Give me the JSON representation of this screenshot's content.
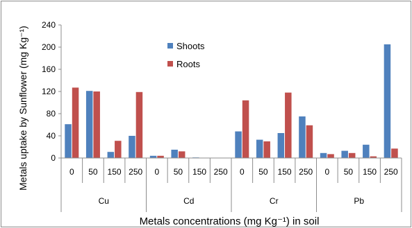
{
  "chart_data": {
    "type": "bar",
    "ylabel": "Metals uptake by Sunflower (mg Kg⁻¹)",
    "xlabel": "Metals concentrations (mg Kg⁻¹) in soil",
    "ylim": [
      0,
      240
    ],
    "yticks": [
      0,
      40,
      80,
      120,
      160,
      200,
      240
    ],
    "grid": false,
    "legend_position": "top-center",
    "groups": [
      {
        "label": "Cu",
        "categories": [
          "0",
          "50",
          "150",
          "250"
        ]
      },
      {
        "label": "Cd",
        "categories": [
          "0",
          "50",
          "150",
          "250"
        ]
      },
      {
        "label": "Cr",
        "categories": [
          "0",
          "50",
          "150",
          "250"
        ]
      },
      {
        "label": "Pb",
        "categories": [
          "0",
          "50",
          "150",
          "250"
        ]
      }
    ],
    "series": [
      {
        "name": "Shoots",
        "color": "#4f81bd",
        "values": [
          61,
          121,
          11,
          40,
          4,
          15,
          1,
          0,
          48,
          33,
          45,
          75,
          9,
          13,
          24,
          205
        ]
      },
      {
        "name": "Roots",
        "color": "#c0504d",
        "values": [
          127,
          120,
          31,
          119,
          4,
          12,
          0,
          0,
          104,
          30,
          118,
          59,
          7,
          9,
          3,
          17
        ]
      }
    ]
  }
}
